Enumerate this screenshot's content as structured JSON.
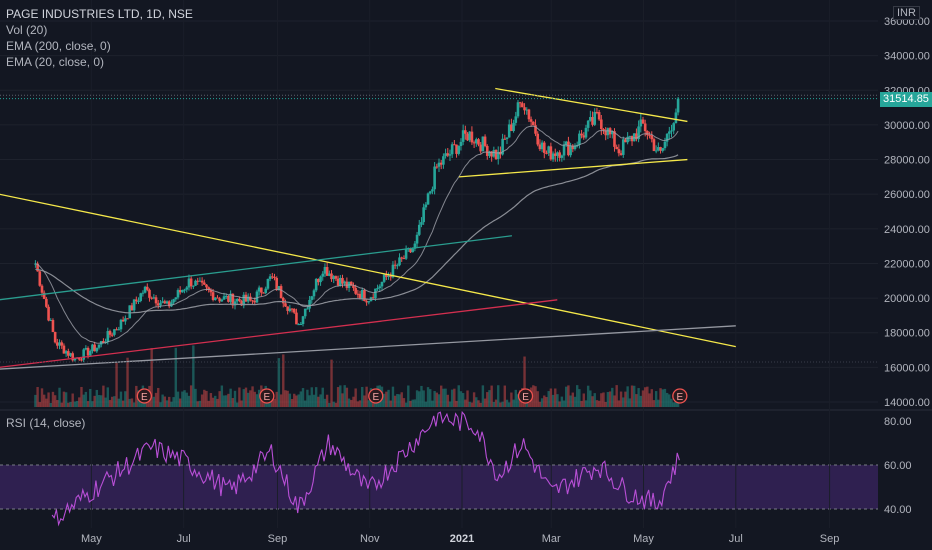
{
  "legend": {
    "title": "PAGE INDUSTRIES LTD, 1D, NSE",
    "vol": "Vol (20)",
    "ema200": "EMA (200, close, 0)",
    "ema20": "EMA (20, close, 0)"
  },
  "rsi_title": "RSI (14, close)",
  "currency": "INR",
  "last_price_label": "31514.85",
  "earnings_marker": "E",
  "colors": {
    "background": "#131722",
    "up": "#26a69a",
    "down": "#ef5350",
    "trendline": "#f5e84a",
    "rsi": "#b84fd6",
    "rsi_band": "#3a2460",
    "ema200": "#8a8d95",
    "teal_line": "#2a9d8f",
    "red_line": "#d32f4f",
    "grey_line": "#9598a1"
  },
  "chart_data": [
    {
      "type": "candlestick",
      "title": "PAGE INDUSTRIES LTD, 1D, NSE",
      "yaxis_labels": [
        "36000.00",
        "34000.00",
        "32000.00",
        "30000.00",
        "28000.00",
        "26000.00",
        "24000.00",
        "22000.00",
        "20000.00",
        "18000.00",
        "16000.00",
        "14000.00"
      ],
      "xaxis_labels": [
        "May",
        "Jul",
        "Sep",
        "Nov",
        "2021",
        "Mar",
        "May",
        "Jul",
        "Sep"
      ],
      "ylim": [
        13500,
        36500
      ],
      "last_price": 31514.85,
      "approx_close_path": [
        {
          "date": "2020-03-25",
          "close": 22000
        },
        {
          "date": "2020-04-07",
          "close": 17500
        },
        {
          "date": "2020-04-20",
          "close": 16500
        },
        {
          "date": "2020-05-05",
          "close": 17200
        },
        {
          "date": "2020-05-20",
          "close": 18500
        },
        {
          "date": "2020-06-05",
          "close": 20500
        },
        {
          "date": "2020-06-20",
          "close": 19500
        },
        {
          "date": "2020-07-05",
          "close": 21000
        },
        {
          "date": "2020-07-25",
          "close": 20000
        },
        {
          "date": "2020-08-15",
          "close": 19800
        },
        {
          "date": "2020-08-28",
          "close": 21200
        },
        {
          "date": "2020-09-15",
          "close": 18500
        },
        {
          "date": "2020-10-01",
          "close": 21800
        },
        {
          "date": "2020-10-15",
          "close": 20800
        },
        {
          "date": "2020-10-31",
          "close": 20000
        },
        {
          "date": "2020-11-15",
          "close": 21500
        },
        {
          "date": "2020-12-01",
          "close": 23000
        },
        {
          "date": "2020-12-15",
          "close": 27500
        },
        {
          "date": "2021-01-05",
          "close": 29500
        },
        {
          "date": "2021-01-25",
          "close": 28200
        },
        {
          "date": "2021-02-10",
          "close": 31500
        },
        {
          "date": "2021-02-25",
          "close": 28300
        },
        {
          "date": "2021-03-15",
          "close": 28800
        },
        {
          "date": "2021-04-01",
          "close": 30500
        },
        {
          "date": "2021-04-15",
          "close": 28500
        },
        {
          "date": "2021-05-01",
          "close": 30000
        },
        {
          "date": "2021-05-12",
          "close": 28200
        },
        {
          "date": "2021-05-25",
          "close": 31514.85
        }
      ]
    },
    {
      "type": "line",
      "title": "RSI (14, close)",
      "yaxis_labels": [
        "80.00",
        "60.00",
        "40.00"
      ],
      "ylim": [
        35,
        85
      ],
      "band": [
        40,
        60
      ],
      "approx_values": [
        {
          "date": "2020-04-05",
          "value": 34
        },
        {
          "date": "2020-05-01",
          "value": 48
        },
        {
          "date": "2020-06-10",
          "value": 68
        },
        {
          "date": "2020-07-01",
          "value": 62
        },
        {
          "date": "2020-08-01",
          "value": 48
        },
        {
          "date": "2020-08-28",
          "value": 66
        },
        {
          "date": "2020-09-15",
          "value": 40
        },
        {
          "date": "2020-10-05",
          "value": 70
        },
        {
          "date": "2020-10-31",
          "value": 48
        },
        {
          "date": "2020-12-05",
          "value": 74
        },
        {
          "date": "2020-12-15",
          "value": 82
        },
        {
          "date": "2021-01-10",
          "value": 78
        },
        {
          "date": "2021-01-25",
          "value": 55
        },
        {
          "date": "2021-02-10",
          "value": 70
        },
        {
          "date": "2021-03-01",
          "value": 47
        },
        {
          "date": "2021-04-01",
          "value": 60
        },
        {
          "date": "2021-04-20",
          "value": 48
        },
        {
          "date": "2021-05-10",
          "value": 42
        },
        {
          "date": "2021-05-25",
          "value": 64
        }
      ]
    }
  ]
}
